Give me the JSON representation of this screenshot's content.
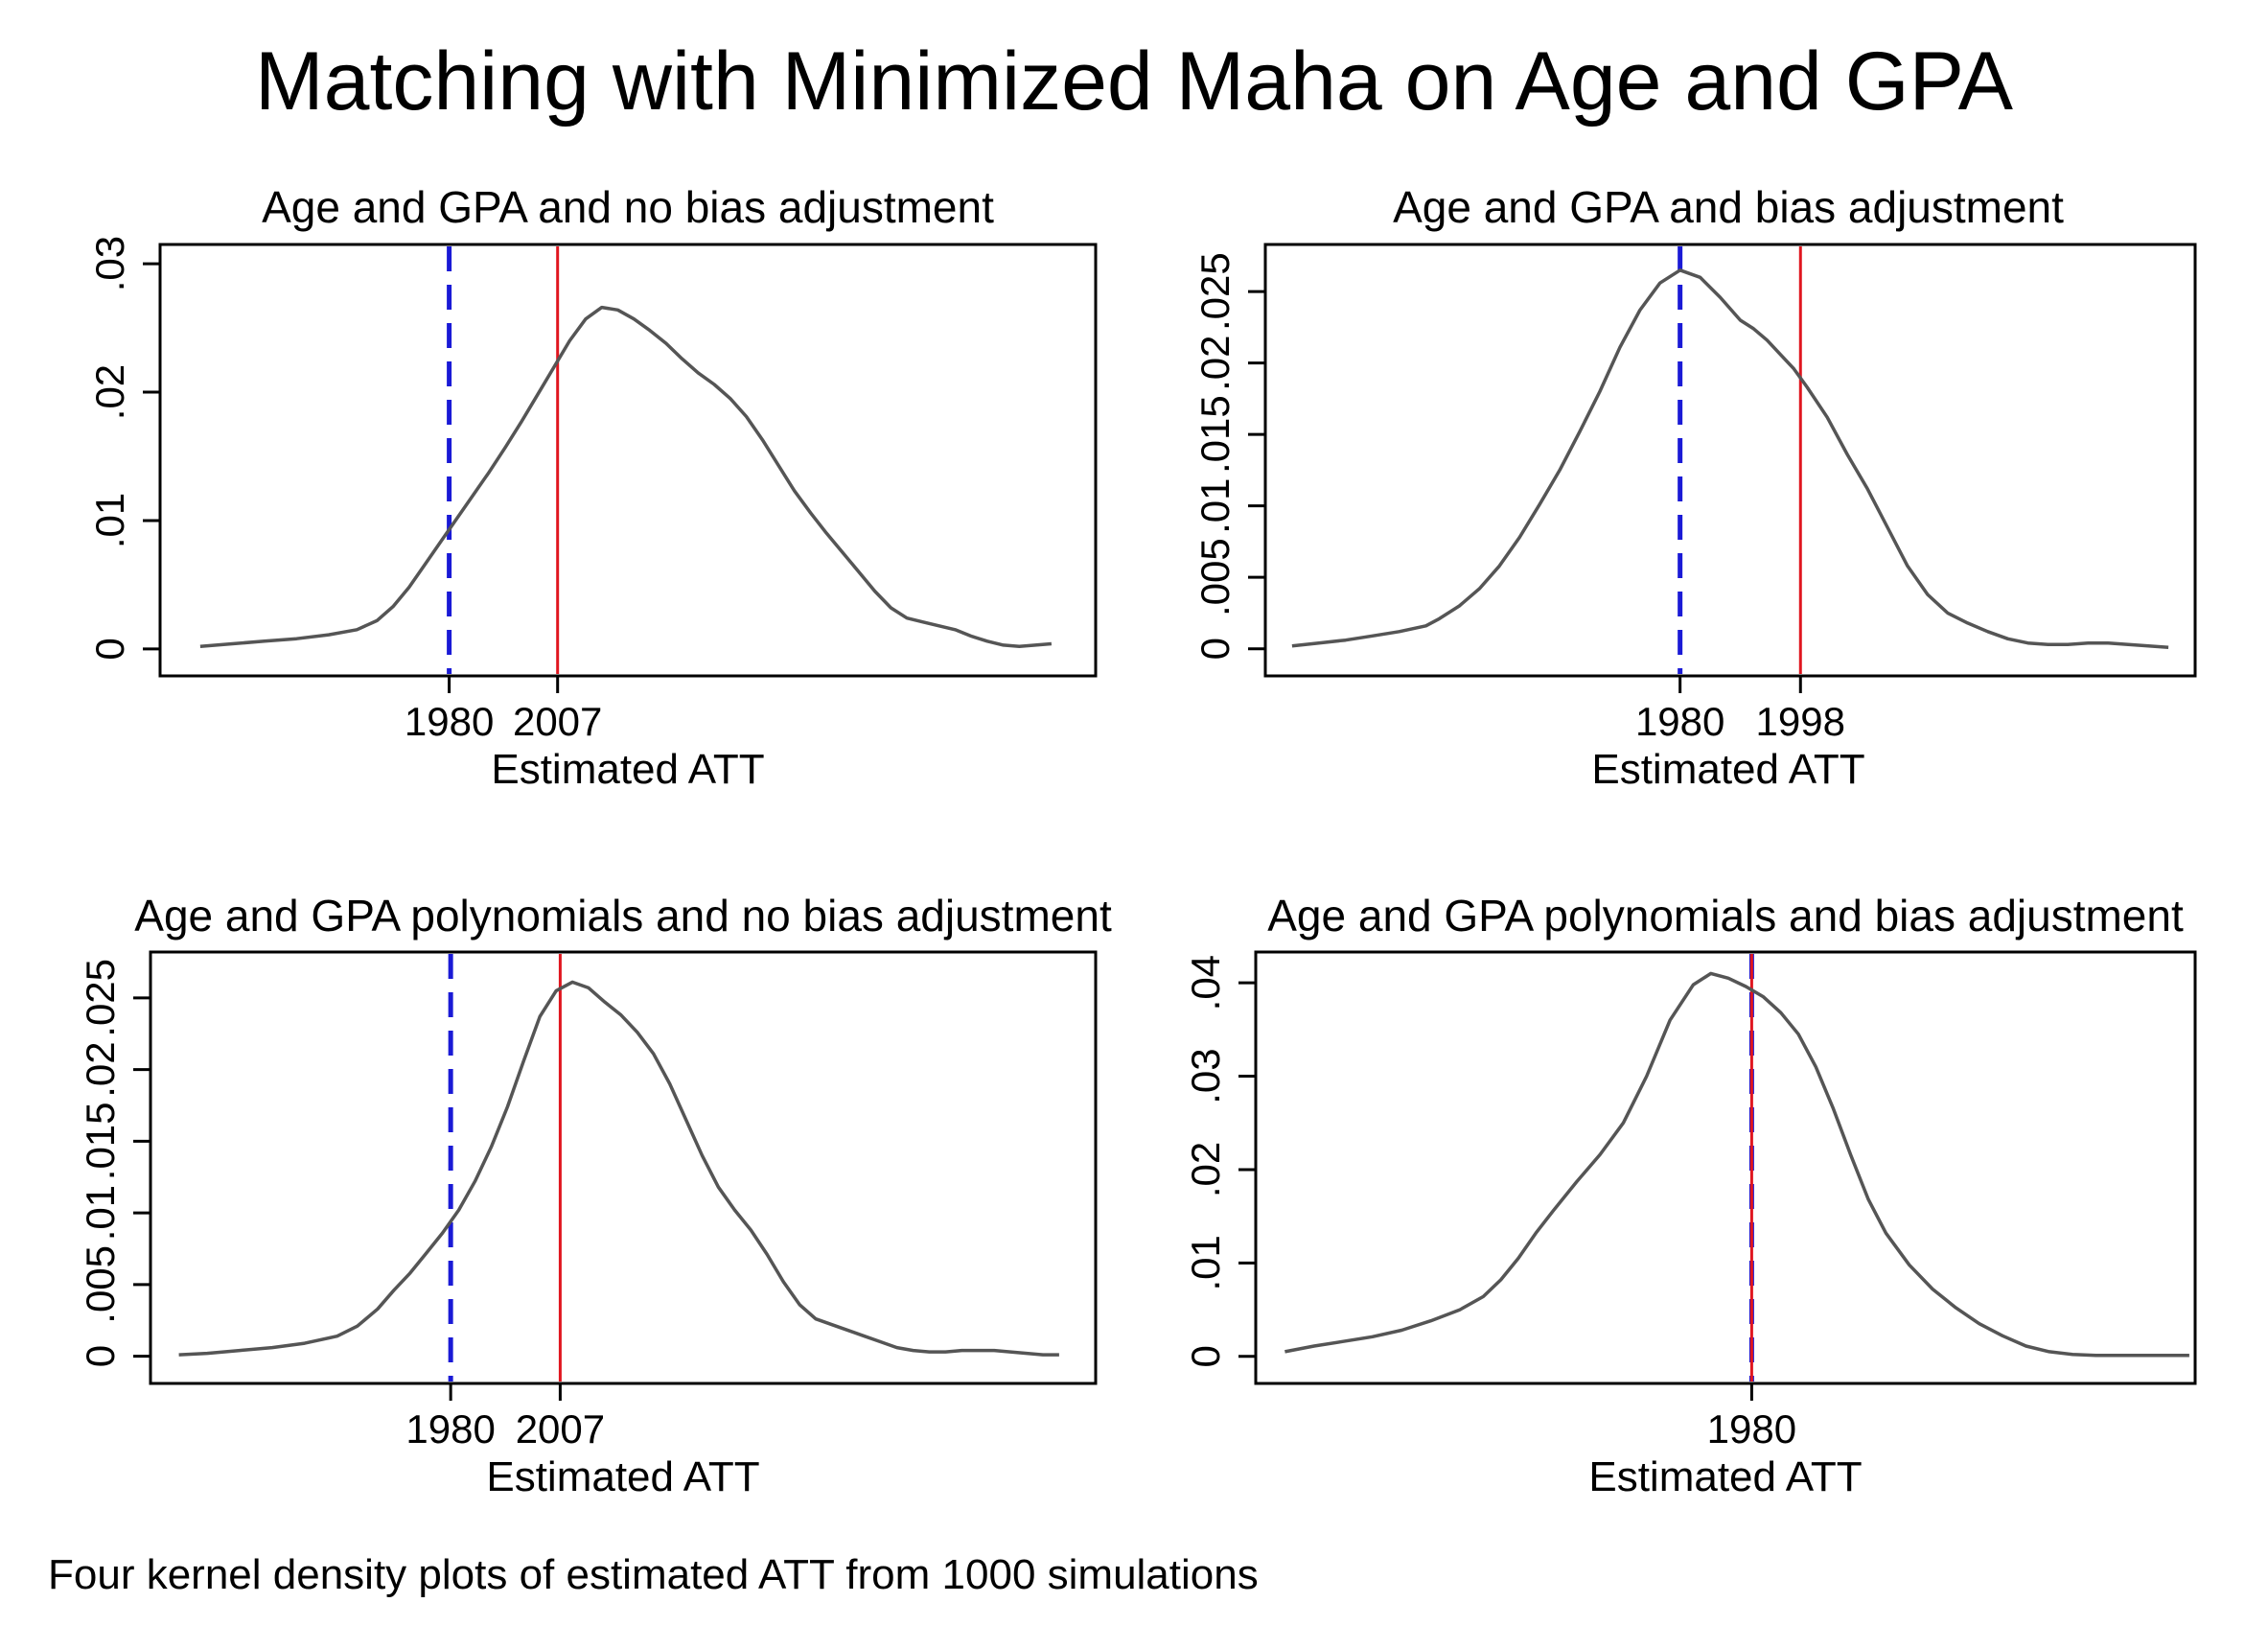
{
  "figure": {
    "title": "Matching with Minimized Maha on Age and GPA",
    "note": "Four kernel density plots of estimated ATT from 1000 simulations"
  },
  "colors": {
    "density": "#555555",
    "dashed_line": "#1a1ad6",
    "solid_line": "#e0161f",
    "axis": "#000000"
  },
  "chart_data": [
    {
      "type": "line",
      "title": "Age and GPA and no bias adjustment",
      "xlabel": "Estimated ATT",
      "ylabel": "",
      "xlim": [
        1908,
        2141
      ],
      "ylim": [
        -0.0021,
        0.0315
      ],
      "x_ticks": [
        {
          "value": 1980,
          "label": "1980"
        },
        {
          "value": 2007,
          "label": "2007"
        }
      ],
      "y_ticks": [
        {
          "value": 0,
          "label": "0"
        },
        {
          "value": 0.01,
          "label": ".01"
        },
        {
          "value": 0.02,
          "label": ".02"
        },
        {
          "value": 0.03,
          "label": ".03"
        }
      ],
      "vlines": [
        {
          "x": 1980,
          "style": "dashed",
          "color": "#1a1ad6"
        },
        {
          "x": 2007,
          "style": "solid",
          "color": "#e0161f"
        }
      ],
      "series": [
        {
          "x": [
            1918,
            1926,
            1934,
            1942,
            1950,
            1957,
            1962,
            1966,
            1970,
            1974,
            1978,
            1982,
            1986,
            1990,
            1994,
            1998,
            2002,
            2006,
            2010,
            2014,
            2018,
            2022,
            2026,
            2030,
            2034,
            2038,
            2042,
            2046,
            2050,
            2054,
            2058,
            2062,
            2066,
            2070,
            2074,
            2078,
            2082,
            2086,
            2090,
            2094,
            2098,
            2102,
            2106,
            2110,
            2114,
            2118,
            2122,
            2126,
            2130
          ],
          "y": [
            0.0002,
            0.0004,
            0.0006,
            0.0008,
            0.0011,
            0.0015,
            0.0022,
            0.0033,
            0.0048,
            0.0066,
            0.0084,
            0.0102,
            0.012,
            0.0138,
            0.0157,
            0.0177,
            0.0198,
            0.0219,
            0.024,
            0.0257,
            0.0266,
            0.0264,
            0.0257,
            0.0248,
            0.0238,
            0.0226,
            0.0215,
            0.0206,
            0.0195,
            0.0181,
            0.0163,
            0.0143,
            0.0123,
            0.0106,
            0.009,
            0.0075,
            0.006,
            0.0045,
            0.0032,
            0.0024,
            0.0021,
            0.0018,
            0.0015,
            0.001,
            0.0006,
            0.0003,
            0.0002,
            0.0003,
            0.0004
          ]
        }
      ]
    },
    {
      "type": "line",
      "title": "Age and GPA and bias adjustment",
      "xlabel": "Estimated ATT",
      "ylabel": "",
      "xlim": [
        1918,
        2057
      ],
      "ylim": [
        -0.0019,
        0.0283
      ],
      "x_ticks": [
        {
          "value": 1980,
          "label": "1980"
        },
        {
          "value": 1998,
          "label": "1998"
        }
      ],
      "y_ticks": [
        {
          "value": 0,
          "label": "0"
        },
        {
          "value": 0.005,
          "label": ".005"
        },
        {
          "value": 0.01,
          "label": ".01"
        },
        {
          "value": 0.015,
          "label": ".015"
        },
        {
          "value": 0.02,
          "label": ".02"
        },
        {
          "value": 0.025,
          "label": ".025"
        }
      ],
      "vlines": [
        {
          "x": 1980,
          "style": "dashed",
          "color": "#1a1ad6"
        },
        {
          "x": 1998,
          "style": "solid",
          "color": "#e0161f"
        }
      ],
      "series": [
        {
          "x": [
            1922,
            1926,
            1930,
            1934,
            1938,
            1942,
            1944,
            1947,
            1950,
            1953,
            1956,
            1959,
            1962,
            1965,
            1968,
            1971,
            1974,
            1977,
            1980,
            1983,
            1986,
            1989,
            1991,
            1993,
            1995,
            1997,
            1999,
            2002,
            2005,
            2008,
            2011,
            2014,
            2017,
            2020,
            2023,
            2026,
            2029,
            2032,
            2035,
            2038,
            2041,
            2044,
            2047,
            2050,
            2053
          ],
          "y": [
            0.0002,
            0.0004,
            0.0006,
            0.0009,
            0.0012,
            0.0016,
            0.0021,
            0.003,
            0.0042,
            0.0058,
            0.0078,
            0.0101,
            0.0125,
            0.0152,
            0.018,
            0.0211,
            0.0237,
            0.0256,
            0.0265,
            0.026,
            0.0246,
            0.023,
            0.0224,
            0.0216,
            0.0206,
            0.0196,
            0.0183,
            0.0162,
            0.0136,
            0.0112,
            0.0085,
            0.0058,
            0.0038,
            0.0025,
            0.0018,
            0.0012,
            0.0007,
            0.0004,
            0.0003,
            0.0003,
            0.0004,
            0.0004,
            0.0003,
            0.0002,
            0.0001
          ]
        }
      ]
    },
    {
      "type": "line",
      "title": "Age and GPA polynomials and no bias adjustment",
      "xlabel": "Estimated ATT",
      "ylabel": "",
      "xlim": [
        1906,
        2139
      ],
      "ylim": [
        -0.0019,
        0.0282
      ],
      "x_ticks": [
        {
          "value": 1980,
          "label": "1980"
        },
        {
          "value": 2007,
          "label": "2007"
        }
      ],
      "y_ticks": [
        {
          "value": 0,
          "label": "0"
        },
        {
          "value": 0.005,
          "label": ".005"
        },
        {
          "value": 0.01,
          "label": ".01"
        },
        {
          "value": 0.015,
          "label": ".015"
        },
        {
          "value": 0.02,
          "label": ".02"
        },
        {
          "value": 0.025,
          "label": ".025"
        }
      ],
      "vlines": [
        {
          "x": 1980,
          "style": "dashed",
          "color": "#1a1ad6"
        },
        {
          "x": 2007,
          "style": "solid",
          "color": "#e0161f"
        }
      ],
      "series": [
        {
          "x": [
            1913,
            1920,
            1928,
            1936,
            1944,
            1952,
            1957,
            1962,
            1966,
            1970,
            1974,
            1978,
            1982,
            1986,
            1990,
            1994,
            1998,
            2002,
            2006,
            2010,
            2014,
            2018,
            2022,
            2026,
            2030,
            2034,
            2038,
            2042,
            2046,
            2050,
            2054,
            2058,
            2062,
            2066,
            2070,
            2074,
            2078,
            2082,
            2086,
            2090,
            2094,
            2098,
            2102,
            2106,
            2110,
            2114,
            2118,
            2122,
            2126,
            2130
          ],
          "y": [
            0.0001,
            0.0002,
            0.0004,
            0.0006,
            0.0009,
            0.0014,
            0.0021,
            0.0033,
            0.0046,
            0.0058,
            0.0072,
            0.0086,
            0.0102,
            0.0122,
            0.0146,
            0.0174,
            0.0206,
            0.0237,
            0.0255,
            0.0261,
            0.0257,
            0.0247,
            0.0238,
            0.0226,
            0.0211,
            0.019,
            0.0165,
            0.014,
            0.0118,
            0.0102,
            0.0088,
            0.0071,
            0.0052,
            0.0036,
            0.0026,
            0.0022,
            0.0018,
            0.0014,
            0.001,
            0.0006,
            0.0004,
            0.0003,
            0.0003,
            0.0004,
            0.0004,
            0.0004,
            0.0003,
            0.0002,
            0.0001,
            0.0001
          ]
        }
      ]
    },
    {
      "type": "line",
      "title": "Age and GPA polynomials and bias adjustment",
      "xlabel": "Estimated ATT",
      "ylabel": "",
      "xlim": [
        1895,
        2056
      ],
      "ylim": [
        -0.0029,
        0.0433
      ],
      "x_ticks": [
        {
          "value": 1980,
          "label": "1980"
        }
      ],
      "y_ticks": [
        {
          "value": 0,
          "label": "0"
        },
        {
          "value": 0.01,
          "label": ".01"
        },
        {
          "value": 0.02,
          "label": ".02"
        },
        {
          "value": 0.03,
          "label": ".03"
        },
        {
          "value": 0.04,
          "label": ".04"
        }
      ],
      "vlines": [
        {
          "x": 1980,
          "style": "dashed",
          "color": "#1a1ad6"
        },
        {
          "x": 1980,
          "style": "solid",
          "color": "#e0161f"
        }
      ],
      "series": [
        {
          "x": [
            1900,
            1905,
            1910,
            1915,
            1920,
            1925,
            1930,
            1934,
            1937,
            1940,
            1943,
            1946,
            1950,
            1954,
            1958,
            1962,
            1966,
            1970,
            1973,
            1976,
            1979,
            1982,
            1985,
            1988,
            1991,
            1994,
            1997,
            2000,
            2003,
            2007,
            2011,
            2015,
            2019,
            2023,
            2027,
            2031,
            2035,
            2039,
            2043,
            2047,
            2051,
            2055
          ],
          "y": [
            0.0005,
            0.0011,
            0.0016,
            0.0021,
            0.0028,
            0.0038,
            0.005,
            0.0064,
            0.0082,
            0.0105,
            0.0132,
            0.0156,
            0.0187,
            0.0216,
            0.025,
            0.03,
            0.036,
            0.0398,
            0.041,
            0.0405,
            0.0396,
            0.0385,
            0.0368,
            0.0345,
            0.031,
            0.0265,
            0.0215,
            0.0168,
            0.0132,
            0.0098,
            0.0072,
            0.0052,
            0.0035,
            0.0022,
            0.0011,
            0.0005,
            0.0002,
            0.0001,
            0.0001,
            0.0001,
            0.0001,
            0.0001
          ]
        }
      ]
    }
  ]
}
